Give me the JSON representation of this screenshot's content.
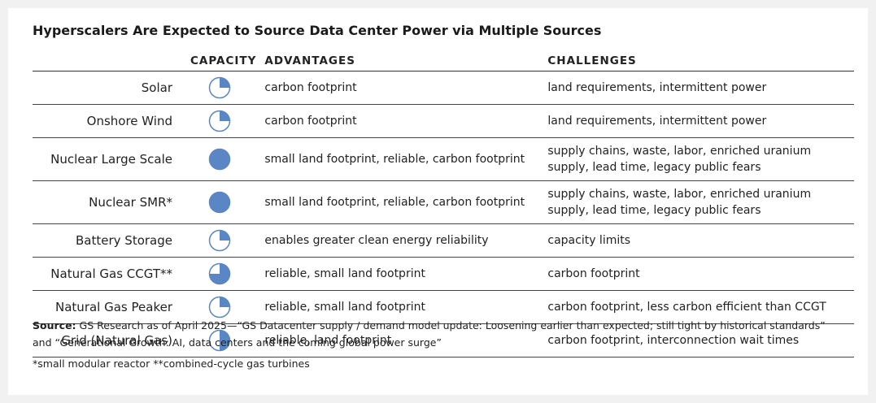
{
  "title": "Hyperscalers Are Expected to Source Data Center Power via Multiple Sources",
  "table": {
    "headers": [
      "CAPACITY",
      "ADVANTAGES",
      "CHALLENGES"
    ],
    "rows": [
      {
        "source": "Solar",
        "capacity": 0.25,
        "advantages": "carbon footprint",
        "challenges": "land requirements, intermittent power"
      },
      {
        "source": "Onshore Wind",
        "capacity": 0.25,
        "advantages": "carbon footprint",
        "challenges": "land requirements, intermittent power"
      },
      {
        "source": "Nuclear Large Scale",
        "capacity": 1,
        "advantages": "small land footprint, reliable, carbon footprint",
        "challenges": "supply chains, waste, labor, enriched uranium supply, lead time, legacy public fears"
      },
      {
        "source": "Nuclear SMR*",
        "capacity": 1,
        "advantages": "small land footprint, reliable, carbon footprint",
        "challenges": "supply chains, waste, labor, enriched uranium supply, lead time, legacy public fears"
      },
      {
        "source": "Battery Storage",
        "capacity": 0.25,
        "advantages": "enables greater clean energy reliability",
        "challenges": "capacity limits"
      },
      {
        "source": "Natural Gas CCGT**",
        "capacity": 0.75,
        "advantages": "reliable, small land footprint",
        "challenges": "carbon footprint"
      },
      {
        "source": "Natural Gas Peaker",
        "capacity": 0.25,
        "advantages": "reliable, small land footprint",
        "challenges": "carbon footprint, less carbon efficient than CCGT"
      },
      {
        "source": "Grid (Natural Gas)",
        "capacity": 0.5,
        "advantages": "reliable, land footprint",
        "challenges": "carbon footprint, interconnection wait times"
      }
    ]
  },
  "footer": {
    "source_label": "Source:",
    "source_text": "GS Research as of April 2025—“GS Datacenter supply / demand model update: Loosening earlier than expected; still tight by historical standards” and “Generational Growth: AI, data centers and the coming global power surge”",
    "footnote": "*small modular reactor **combined-cycle gas turbines"
  }
}
